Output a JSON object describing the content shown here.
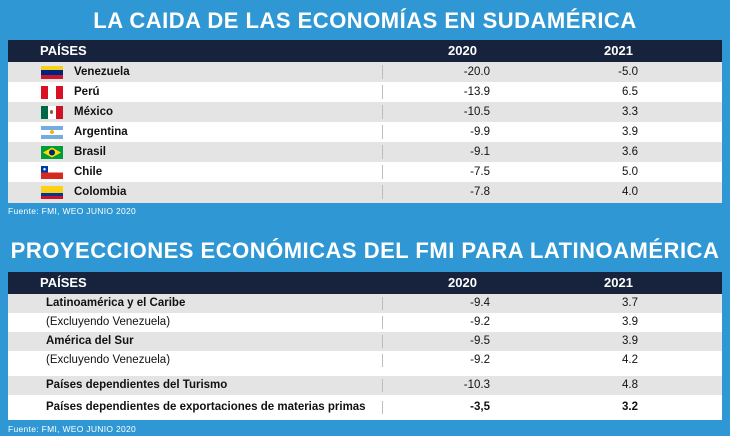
{
  "table1": {
    "title": "LA CAIDA DE LAS ECONOMÍAS EN SUDAMÉRICA",
    "col_country": "PAÍSES",
    "col_2020": "2020",
    "col_2021": "2021",
    "rows": [
      {
        "country": "Venezuela",
        "flag": "venezuela-flag-icon",
        "v2020": "-20.0",
        "v2021": "-5.0"
      },
      {
        "country": "Perú",
        "flag": "peru-flag-icon",
        "v2020": "-13.9",
        "v2021": "6.5"
      },
      {
        "country": "México",
        "flag": "mexico-flag-icon",
        "v2020": "-10.5",
        "v2021": "3.3"
      },
      {
        "country": "Argentina",
        "flag": "argentina-flag-icon",
        "v2020": "-9.9",
        "v2021": "3.9"
      },
      {
        "country": "Brasil",
        "flag": "brazil-flag-icon",
        "v2020": "-9.1",
        "v2021": "3.6"
      },
      {
        "country": "Chile",
        "flag": "chile-flag-icon",
        "v2020": "-7.5",
        "v2021": "5.0"
      },
      {
        "country": "Colombia",
        "flag": "colombia-flag-icon",
        "v2020": "-7.8",
        "v2021": "4.0"
      }
    ],
    "source": "Fuente: FMI, WEO JUNIO 2020"
  },
  "table2": {
    "title": "PROYECCIONES ECONÓMICAS DEL FMI PARA LATINOAMÉRICA",
    "col_country": "PAÍSES",
    "col_2020": "2020",
    "col_2021": "2021",
    "rows": [
      {
        "label": "Latinoamérica y el Caribe",
        "v2020": "-9.4",
        "v2021": "3.7"
      },
      {
        "label": "(Excluyendo Venezuela)",
        "v2020": "-9.2",
        "v2021": "3.9"
      },
      {
        "label": "América del Sur",
        "v2020": "-9.5",
        "v2021": "3.9"
      },
      {
        "label": "(Excluyendo Venezuela)",
        "v2020": "-9.2",
        "v2021": "4.2"
      },
      {
        "label": "Países dependientes del Turismo",
        "v2020": "-10.3",
        "v2021": "4.8"
      },
      {
        "label": "Países dependientes de exportaciones de materias primas",
        "v2020": "-3,5",
        "v2021": "3.2"
      }
    ],
    "source": "Fuente: FMI, WEO JUNIO 2020"
  },
  "colors": {
    "background": "#2f98d4",
    "header": "#17233c",
    "row_alt": "#e4e4e4"
  }
}
